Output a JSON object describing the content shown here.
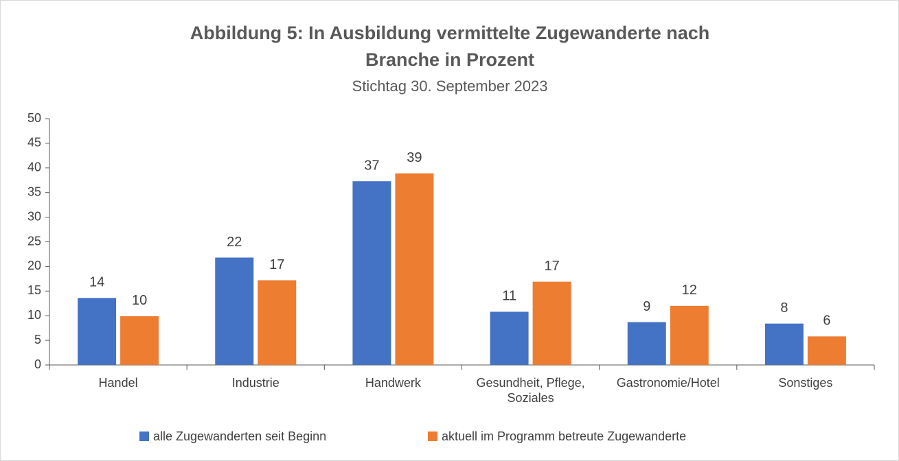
{
  "chart_data": {
    "type": "bar",
    "title": [
      "Abbildung 5: In Ausbildung vermittelte Zugewanderte nach",
      "Branche in Prozent"
    ],
    "subtitle": "Stichtag 30. September 2023",
    "categories": [
      "Handel",
      "Industrie",
      "Handwerk",
      "Gesundheit, Pflege, Soziales",
      "Gastronomie/Hotel",
      "Sonstiges"
    ],
    "series": [
      {
        "name": "alle Zugewanderten seit Beginn",
        "color": "#4472c4",
        "values": [
          13.6,
          21.8,
          37.3,
          10.8,
          8.7,
          8.4
        ],
        "value_labels": [
          "14",
          "22",
          "37",
          "11",
          "9",
          "8"
        ]
      },
      {
        "name": "aktuell im Programm betreute Zugewanderte",
        "color": "#ed7d31",
        "values": [
          9.9,
          17.2,
          38.9,
          16.9,
          12.0,
          5.8
        ],
        "value_labels": [
          "10",
          "17",
          "39",
          "17",
          "12",
          "6"
        ]
      }
    ],
    "ylim": [
      0,
      50
    ],
    "yticks": [
      0,
      5,
      10,
      15,
      20,
      25,
      30,
      35,
      40,
      45,
      50
    ],
    "grid": false,
    "legend": "bottom"
  }
}
